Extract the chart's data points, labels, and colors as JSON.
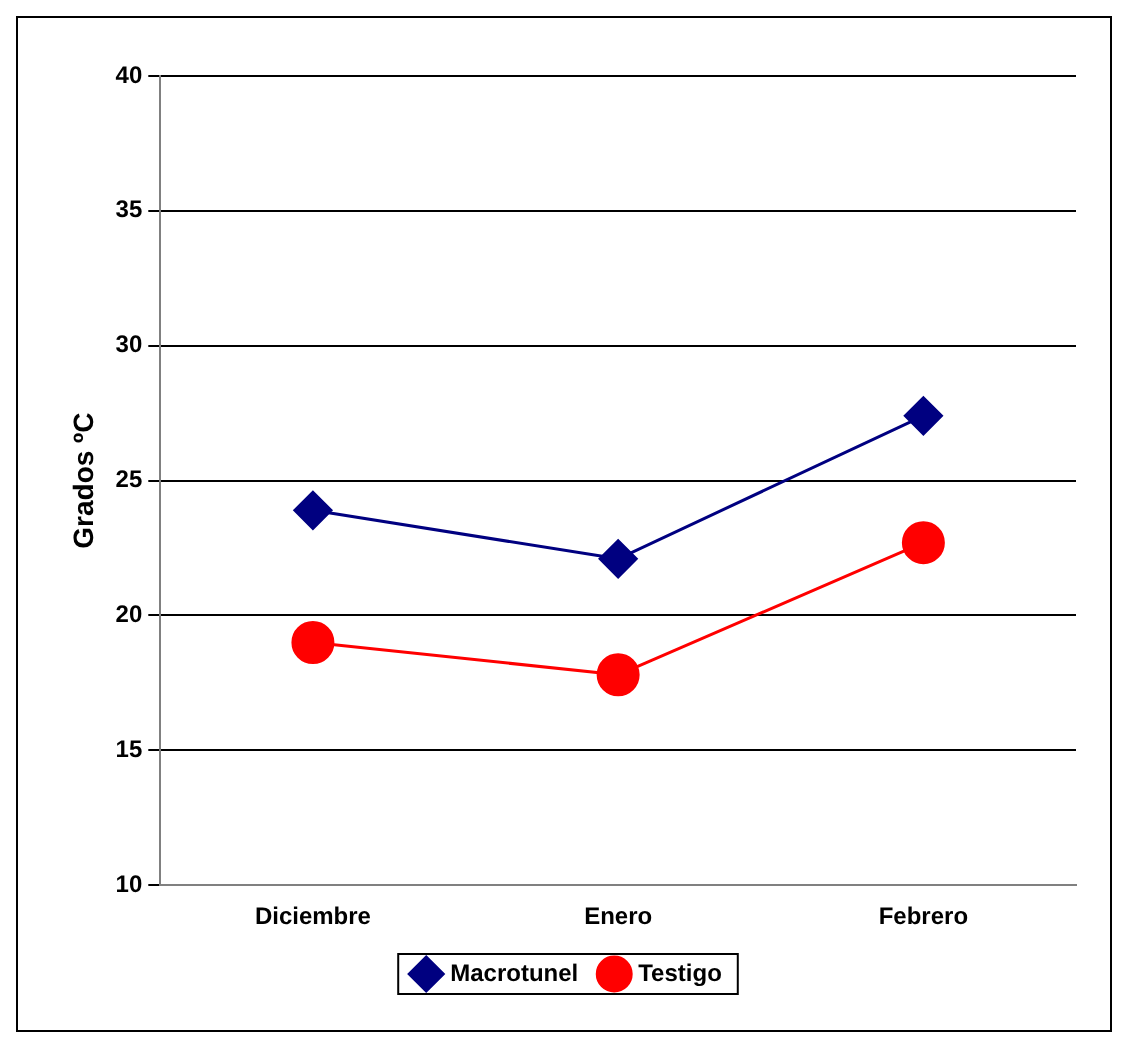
{
  "chart_data": {
    "type": "line",
    "ylabel": "Grados ºC",
    "categories": [
      "Diciembre",
      "Enero",
      "Febrero"
    ],
    "series": [
      {
        "name": "Macrotunel",
        "color": "#000080",
        "marker": "diamond",
        "values": [
          23.9,
          22.1,
          27.4
        ]
      },
      {
        "name": "Testigo",
        "color": "#ff0000",
        "marker": "circle",
        "values": [
          19.0,
          17.8,
          22.7
        ]
      }
    ],
    "ylim": [
      10,
      40
    ],
    "yticks": [
      10,
      15,
      20,
      25,
      30,
      35,
      40
    ],
    "grid": "y",
    "legend": "bottom",
    "line_style": "solid"
  }
}
